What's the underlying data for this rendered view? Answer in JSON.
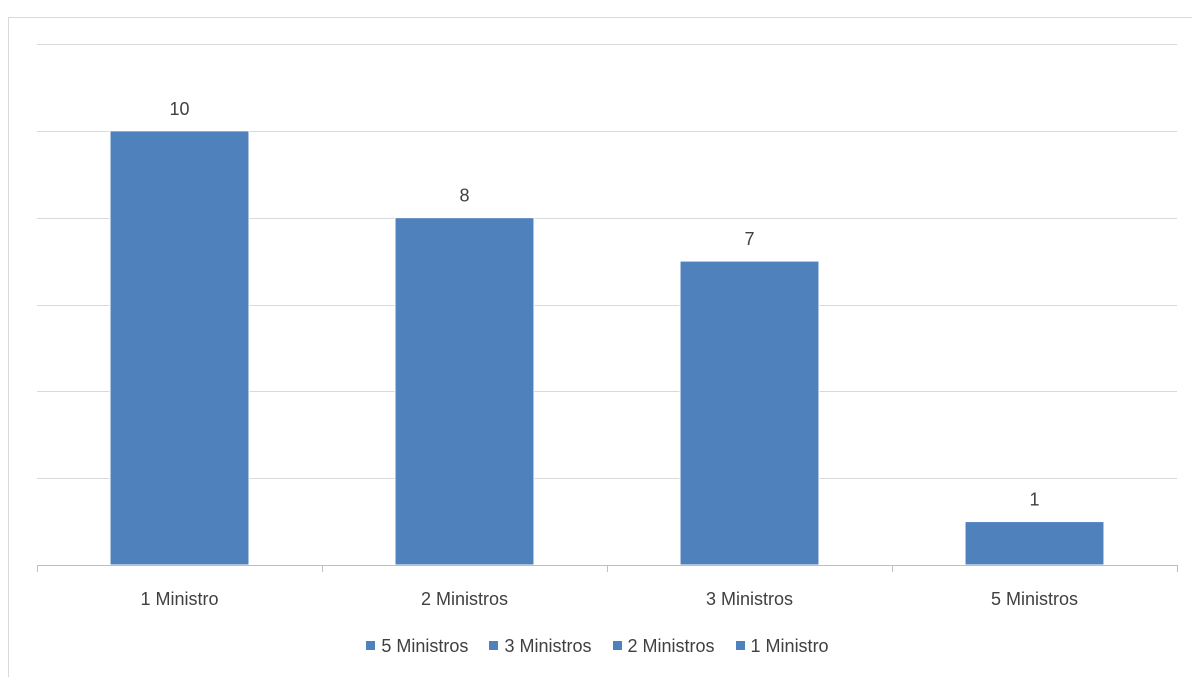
{
  "colors": {
    "bar": "#4f81bd",
    "grid": "#d9d9d9",
    "axis": "#bfbfbf",
    "text": "#404040"
  },
  "chart_data": {
    "type": "bar",
    "categories": [
      "1 Ministro",
      "2 Ministros",
      "3 Ministros",
      "5 Ministros"
    ],
    "series": [
      {
        "values": [
          10,
          8,
          7,
          1
        ]
      }
    ],
    "data_labels": [
      "10",
      "8",
      "7",
      "1"
    ],
    "ylim": [
      0,
      12
    ],
    "ytick_step": 2,
    "yaxis_labels_shown": false,
    "grid": true,
    "legend": {
      "placement": "bottom",
      "entries": [
        "5 Ministros",
        "3 Ministros",
        "2 Ministros",
        "1 Ministro"
      ]
    }
  }
}
